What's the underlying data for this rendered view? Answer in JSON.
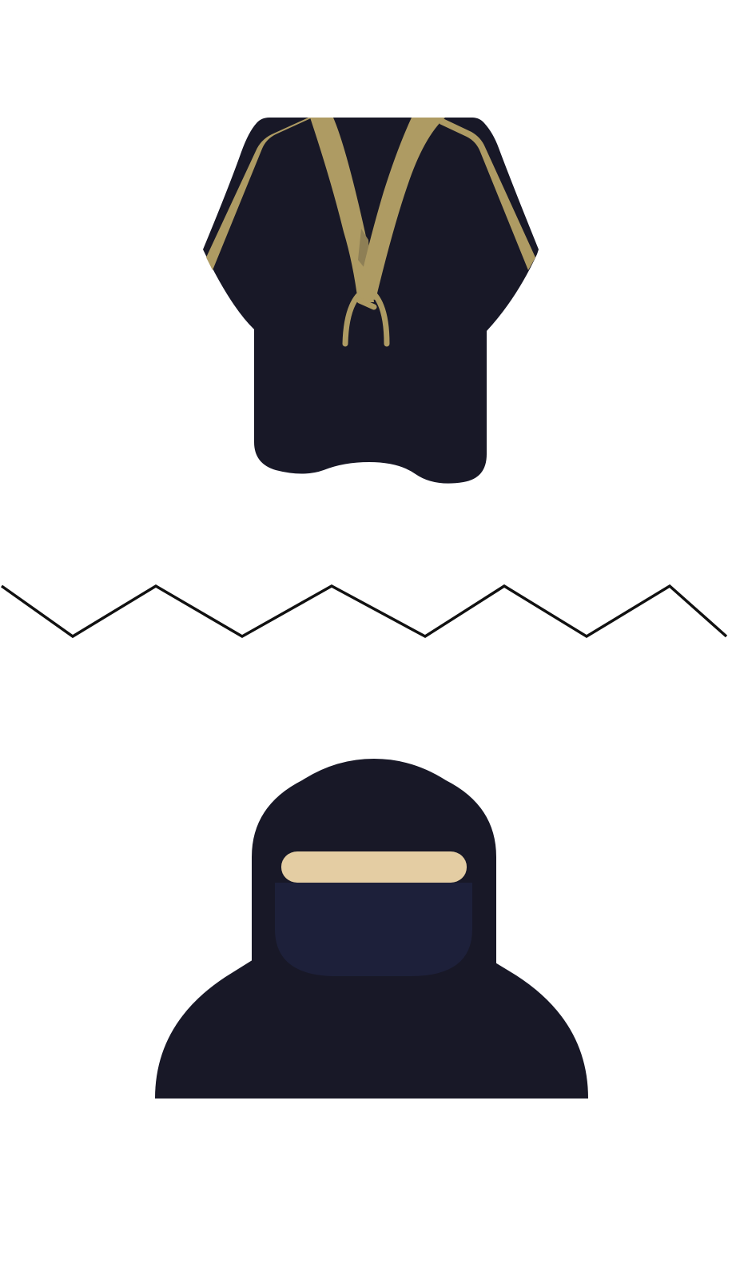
{
  "colors": {
    "background": "#ffffff",
    "garment_dark": "#181827",
    "trim_gold": "#ae9b63",
    "trim_shadow": "#8e7f55",
    "face_skin": "#e4cda3",
    "veil_navy": "#1d203a",
    "divider_line": "#111111"
  },
  "illustrations": [
    {
      "id": "abaya",
      "icon": "abaya-robe-icon"
    },
    {
      "id": "divider",
      "icon": "zigzag-divider"
    },
    {
      "id": "niqab",
      "icon": "niqab-figure-icon"
    }
  ]
}
